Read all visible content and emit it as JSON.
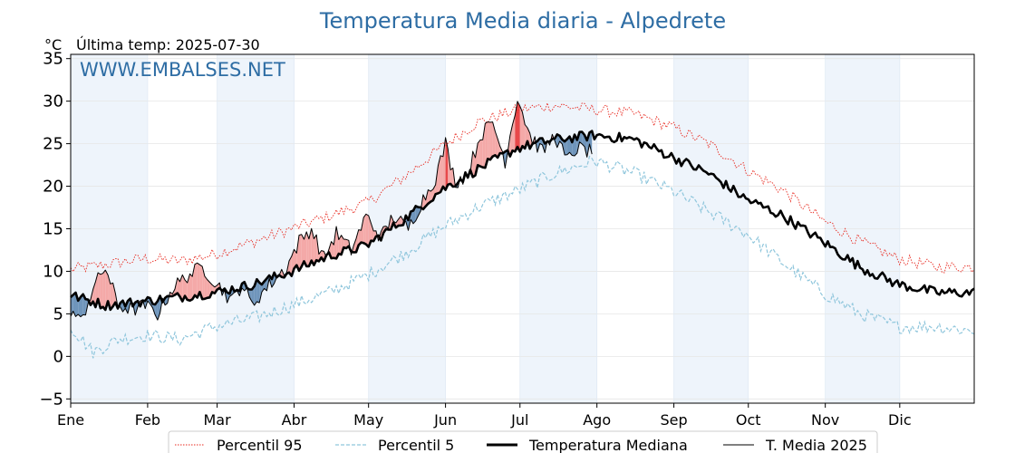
{
  "chart_data": {
    "type": "line",
    "title": "Temperatura Media diaria - Alpedrete",
    "unit_label": "°C",
    "last_temp_label": "Última temp: 2025-07-30",
    "watermark": "WWW.EMBALSES.NET",
    "ylim": [
      -5.5,
      35.5
    ],
    "yticks": [
      -5,
      0,
      5,
      10,
      15,
      20,
      25,
      30,
      35
    ],
    "ytick_labels": [
      "−5",
      "0",
      "5",
      "10",
      "15",
      "20",
      "25",
      "30",
      "35"
    ],
    "months": [
      "Ene",
      "Feb",
      "Mar",
      "Abr",
      "May",
      "Jun",
      "Jul",
      "Ago",
      "Sep",
      "Oct",
      "Nov",
      "Dic"
    ],
    "month_start_days": [
      1,
      32,
      60,
      91,
      121,
      152,
      182,
      213,
      244,
      274,
      305,
      335
    ],
    "days_in_year": 365,
    "grid": true,
    "legend_position": "bottom",
    "colors": {
      "p95": "#e8281e",
      "p5": "#8fc6dc",
      "median": "#000000",
      "year": "#000000",
      "above_fill": "#f4a9a8",
      "above_p95_fill": "#e8484a",
      "below_fill": "#6f95bb",
      "band_shade": "#eef4fb"
    },
    "series": [
      {
        "name": "Percentil 95",
        "style": "dotted",
        "anchors": [
          [
            1,
            10.2
          ],
          [
            15,
            10.8
          ],
          [
            31,
            11.5
          ],
          [
            45,
            11.2
          ],
          [
            59,
            12.0
          ],
          [
            75,
            13.5
          ],
          [
            90,
            15.0
          ],
          [
            105,
            16.5
          ],
          [
            120,
            18.0
          ],
          [
            135,
            21.0
          ],
          [
            150,
            24.5
          ],
          [
            165,
            27.5
          ],
          [
            181,
            29.0
          ],
          [
            196,
            29.5
          ],
          [
            212,
            29.0
          ],
          [
            228,
            28.5
          ],
          [
            243,
            27.0
          ],
          [
            258,
            25.0
          ],
          [
            273,
            22.0
          ],
          [
            288,
            19.5
          ],
          [
            304,
            16.0
          ],
          [
            319,
            13.5
          ],
          [
            334,
            11.5
          ],
          [
            350,
            10.5
          ],
          [
            365,
            10.5
          ]
        ]
      },
      {
        "name": "Percentil 5",
        "style": "dashed",
        "anchors": [
          [
            1,
            3.5
          ],
          [
            10,
            0.5
          ],
          [
            20,
            2.0
          ],
          [
            31,
            2.5
          ],
          [
            45,
            2.0
          ],
          [
            59,
            3.5
          ],
          [
            75,
            4.5
          ],
          [
            90,
            6.0
          ],
          [
            105,
            7.5
          ],
          [
            120,
            9.5
          ],
          [
            135,
            12.0
          ],
          [
            150,
            15.0
          ],
          [
            165,
            17.5
          ],
          [
            181,
            19.5
          ],
          [
            196,
            21.5
          ],
          [
            212,
            23.0
          ],
          [
            228,
            21.5
          ],
          [
            243,
            19.5
          ],
          [
            258,
            17.0
          ],
          [
            273,
            14.5
          ],
          [
            288,
            11.0
          ],
          [
            304,
            7.5
          ],
          [
            319,
            5.0
          ],
          [
            334,
            3.5
          ],
          [
            350,
            3.5
          ],
          [
            365,
            3.0
          ]
        ]
      },
      {
        "name": "Temperatura Mediana",
        "style": "thick",
        "anchors": [
          [
            1,
            7.2
          ],
          [
            15,
            6.0
          ],
          [
            31,
            6.5
          ],
          [
            45,
            7.0
          ],
          [
            59,
            7.5
          ],
          [
            75,
            8.5
          ],
          [
            90,
            10.0
          ],
          [
            105,
            11.8
          ],
          [
            120,
            13.0
          ],
          [
            135,
            16.0
          ],
          [
            150,
            19.5
          ],
          [
            165,
            22.0
          ],
          [
            181,
            24.5
          ],
          [
            196,
            25.5
          ],
          [
            212,
            26.0
          ],
          [
            228,
            25.5
          ],
          [
            243,
            23.5
          ],
          [
            258,
            21.5
          ],
          [
            273,
            18.5
          ],
          [
            288,
            16.5
          ],
          [
            304,
            13.5
          ],
          [
            319,
            10.5
          ],
          [
            334,
            8.5
          ],
          [
            350,
            7.5
          ],
          [
            365,
            7.5
          ]
        ]
      },
      {
        "name": "T. Media 2025",
        "style": "thin",
        "end_day": 211,
        "anchors": [
          [
            1,
            5.5
          ],
          [
            5,
            4.0
          ],
          [
            10,
            8.0
          ],
          [
            15,
            10.5
          ],
          [
            20,
            6.0
          ],
          [
            26,
            5.5
          ],
          [
            31,
            6.0
          ],
          [
            36,
            5.0
          ],
          [
            42,
            8.0
          ],
          [
            48,
            9.5
          ],
          [
            54,
            10.5
          ],
          [
            60,
            8.5
          ],
          [
            66,
            6.5
          ],
          [
            70,
            8.5
          ],
          [
            74,
            6.0
          ],
          [
            78,
            7.5
          ],
          [
            83,
            9.0
          ],
          [
            88,
            10.5
          ],
          [
            93,
            13.5
          ],
          [
            98,
            15.0
          ],
          [
            103,
            11.5
          ],
          [
            108,
            14.5
          ],
          [
            114,
            12.5
          ],
          [
            120,
            16.5
          ],
          [
            126,
            14.0
          ],
          [
            131,
            16.5
          ],
          [
            137,
            15.0
          ],
          [
            143,
            18.5
          ],
          [
            148,
            21.0
          ],
          [
            152,
            25.0
          ],
          [
            156,
            20.5
          ],
          [
            161,
            21.5
          ],
          [
            166,
            26.0
          ],
          [
            171,
            27.5
          ],
          [
            176,
            23.0
          ],
          [
            181,
            30.5
          ],
          [
            186,
            26.0
          ],
          [
            191,
            24.0
          ],
          [
            196,
            26.0
          ],
          [
            201,
            23.0
          ],
          [
            205,
            24.5
          ],
          [
            211,
            24.0
          ]
        ]
      }
    ]
  }
}
